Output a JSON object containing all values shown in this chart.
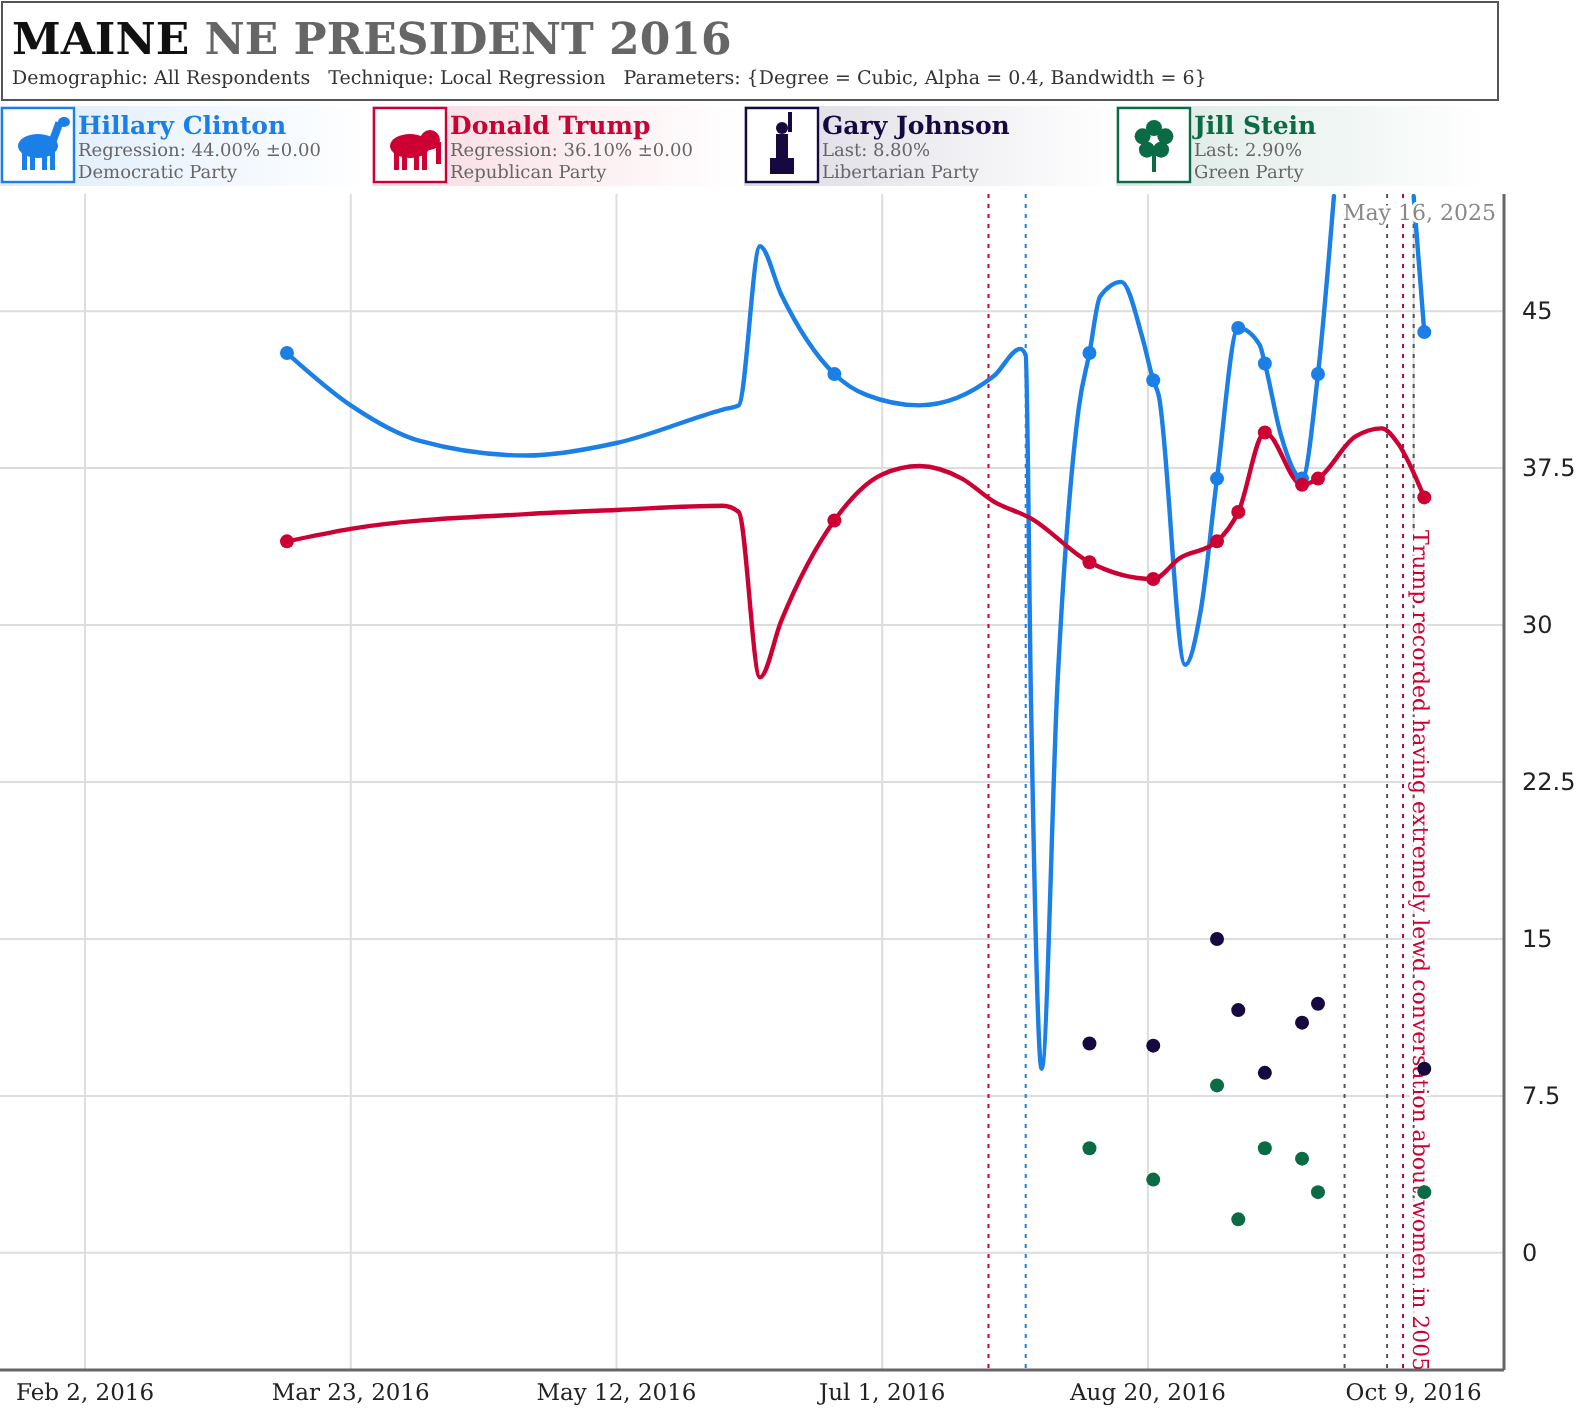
{
  "chart_data": {
    "type": "line",
    "title": "MAINE NE PRESIDENT 2016",
    "subtitle": "Demographic: All Respondents   Technique: Local Regression   Parameters: {Degree = Cubic, Alpha = 0.4, Bandwidth = 6}",
    "xlim": [
      "2016-01-17",
      "2016-10-26"
    ],
    "xticks": [
      {
        "value": "2016-02-02",
        "label": "Feb 2, 2016"
      },
      {
        "value": "2016-03-23",
        "label": "Mar 23, 2016"
      },
      {
        "value": "2016-05-12",
        "label": "May 12, 2016"
      },
      {
        "value": "2016-07-01",
        "label": "Jul 1, 2016"
      },
      {
        "value": "2016-08-20",
        "label": "Aug 20, 2016"
      },
      {
        "value": "2016-10-09",
        "label": "Oct 9, 2016"
      }
    ],
    "ylim": [
      -5.6,
      50.6
    ],
    "yticks": [
      0,
      7.5,
      15,
      22.5,
      30,
      37.5,
      45
    ],
    "grid": true,
    "legend": "top",
    "marker": "none",
    "line_style": "solid",
    "series": [
      {
        "name": "Hillary Clinton",
        "color": "#1a7fe6",
        "x": [
          "2016-03-11",
          "2016-03-23",
          "2016-04-05",
          "2016-04-25",
          "2016-05-12",
          "2016-06-01",
          "2016-06-04",
          "2016-06-08",
          "2016-06-12",
          "2016-06-22",
          "2016-06-28",
          "2016-07-08",
          "2016-07-22",
          "2016-07-27",
          "2016-07-28",
          "2016-07-29",
          "2016-07-31",
          "2016-08-03",
          "2016-08-07",
          "2016-08-09",
          "2016-08-11",
          "2016-08-15",
          "2016-08-19",
          "2016-08-21",
          "2016-08-22",
          "2016-08-27",
          "2016-08-30",
          "2016-09-02",
          "2016-09-06",
          "2016-09-10",
          "2016-09-11",
          "2016-09-14",
          "2016-09-18",
          "2016-09-21",
          "2016-09-24",
          "2016-09-30",
          "2016-10-09",
          "2016-10-11"
        ],
        "values": [
          43.0,
          40.5,
          38.8,
          38.1,
          38.7,
          40.3,
          40.5,
          48.1,
          45.8,
          42.0,
          41.0,
          40.5,
          41.9,
          43.2,
          42.9,
          26.3,
          8.8,
          27.3,
          40.4,
          43.0,
          45.7,
          46.4,
          43.7,
          41.7,
          41.0,
          28.1,
          30.8,
          37.0,
          44.2,
          43.4,
          42.5,
          39.1,
          37.0,
          42.0,
          50.5,
          null,
          50.5,
          44.0
        ]
      },
      {
        "name": "Donald Trump",
        "color": "#cc0033",
        "x": [
          "2016-03-11",
          "2016-03-23",
          "2016-04-25",
          "2016-05-12",
          "2016-06-01",
          "2016-06-04",
          "2016-06-08",
          "2016-06-12",
          "2016-06-22",
          "2016-07-01",
          "2016-07-08",
          "2016-07-16",
          "2016-07-22",
          "2016-07-29",
          "2016-08-09",
          "2016-08-21",
          "2016-08-26",
          "2016-09-02",
          "2016-09-06",
          "2016-09-11",
          "2016-09-18",
          "2016-09-21",
          "2016-09-28",
          "2016-10-03",
          "2016-10-06",
          "2016-10-11"
        ],
        "values": [
          34.0,
          34.6,
          35.3,
          35.5,
          35.7,
          35.4,
          27.5,
          30.2,
          35.0,
          37.2,
          37.6,
          37.0,
          35.9,
          35.1,
          33.0,
          32.2,
          33.2,
          34.0,
          35.4,
          39.2,
          36.7,
          37.0,
          39.0,
          39.4,
          38.7,
          36.1
        ]
      },
      {
        "type": "scatter",
        "marker": "circle",
        "color": "#1a7fe6",
        "x": [
          "2016-03-11",
          "2016-06-22",
          "2016-08-09",
          "2016-08-21",
          "2016-09-02",
          "2016-09-06",
          "2016-09-11",
          "2016-09-18",
          "2016-09-21",
          "2016-10-11"
        ],
        "values": [
          43.0,
          42.0,
          43.0,
          41.7,
          37.0,
          44.2,
          42.5,
          37.0,
          42.0,
          44.0
        ]
      },
      {
        "type": "scatter",
        "marker": "circle",
        "color": "#cc0033",
        "x": [
          "2016-03-11",
          "2016-06-22",
          "2016-08-09",
          "2016-08-21",
          "2016-09-02",
          "2016-09-06",
          "2016-09-11",
          "2016-09-18",
          "2016-09-21",
          "2016-10-11"
        ],
        "values": [
          34.0,
          35.0,
          33.0,
          32.2,
          34.0,
          35.4,
          39.2,
          36.7,
          37.0,
          36.1
        ]
      },
      {
        "name": "Gary Johnson",
        "type": "scatter",
        "marker": "circle",
        "color": "#16093f",
        "x": [
          "2016-08-09",
          "2016-08-21",
          "2016-09-02",
          "2016-09-06",
          "2016-09-11",
          "2016-09-18",
          "2016-09-21",
          "2016-10-11"
        ],
        "values": [
          10.0,
          9.9,
          15.0,
          11.6,
          8.6,
          11.0,
          11.9,
          8.8
        ]
      },
      {
        "name": "Jill Stein",
        "type": "scatter",
        "marker": "circle",
        "color": "#0b6b45",
        "x": [
          "2016-08-09",
          "2016-08-21",
          "2016-09-02",
          "2016-09-06",
          "2016-09-11",
          "2016-09-18",
          "2016-09-21",
          "2016-10-11"
        ],
        "values": [
          5.0,
          3.5,
          8.0,
          1.6,
          5.0,
          4.5,
          2.9,
          2.9
        ]
      }
    ],
    "ref_lines": [
      {
        "axis": "x",
        "value": "2016-07-21",
        "color": "#cc0033",
        "line_style": "dotted"
      },
      {
        "axis": "x",
        "value": "2016-07-28",
        "color": "#1a7fe6",
        "line_style": "dotted"
      },
      {
        "axis": "x",
        "value": "2016-09-26",
        "color": "#555555",
        "line_style": "dotted"
      },
      {
        "axis": "x",
        "value": "2016-10-04",
        "color": "#555555",
        "line_style": "dotted"
      },
      {
        "axis": "x",
        "value": "2016-10-07",
        "color": "#cc0033",
        "line_style": "dotted",
        "label": "Trump recorded having extremely lewd conversation about women in 2005"
      },
      {
        "axis": "x",
        "value": "2016-10-09",
        "color": "#555555",
        "line_style": "dotted"
      }
    ],
    "annotations": [
      "Regression: 44.00% ±0.00",
      "Democratic Party",
      "Regression: 36.10% ±0.00",
      "Republican Party",
      "Last: 8.80%",
      "Libertarian Party",
      "Last: 2.90%",
      "Green Party",
      "May 16, 2025"
    ]
  }
}
